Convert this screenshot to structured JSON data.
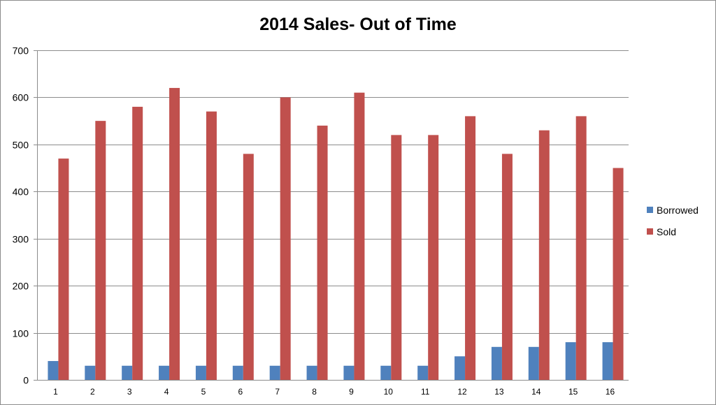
{
  "chart_data": {
    "type": "bar",
    "title": "2014 Sales- Out of Time",
    "xlabel": "",
    "ylabel": "",
    "categories": [
      "1",
      "2",
      "3",
      "4",
      "5",
      "6",
      "7",
      "8",
      "9",
      "10",
      "11",
      "12",
      "13",
      "14",
      "15",
      "16"
    ],
    "series": [
      {
        "name": "Borrowed",
        "color": "#4f81bd",
        "values": [
          40,
          30,
          30,
          30,
          30,
          30,
          30,
          30,
          30,
          30,
          30,
          50,
          70,
          70,
          80,
          80
        ]
      },
      {
        "name": "Sold",
        "color": "#c0504d",
        "values": [
          470,
          550,
          580,
          620,
          570,
          480,
          600,
          540,
          610,
          520,
          520,
          560,
          480,
          530,
          560,
          450
        ]
      }
    ],
    "ylim": [
      0,
      700
    ],
    "yticks": [
      0,
      100,
      200,
      300,
      400,
      500,
      600,
      700
    ],
    "grid": true,
    "legend": "right"
  }
}
